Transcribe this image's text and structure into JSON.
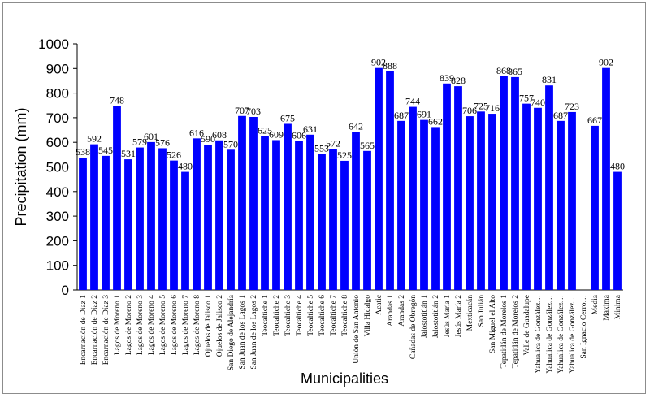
{
  "chart_data": {
    "type": "bar",
    "ylabel": "Precipitation (mm)",
    "xlabel": "Municipalities",
    "ylim": [
      0,
      1000
    ],
    "yticks": [
      0,
      100,
      200,
      300,
      400,
      500,
      600,
      700,
      800,
      900,
      1000
    ],
    "grid": false,
    "bar_color": "#0000ff",
    "categories": [
      "Encarnación de Díaz 1",
      "Encarnación de Díaz 2",
      "Encarnación de Díaz 3",
      "Lagos de Moreno 1",
      "Lagos de Moreno 2",
      "Lagos de Moreno 3",
      "Lagos de Moreno 4",
      "Lagos de Moreno 5",
      "Lagos de Moreno 6",
      "Lagos de Moreno 7",
      "Lagos de Moreno 8",
      "Ojuelos de Jalisco 1",
      "Ojuelos de Jalisco 2",
      "San Diego de Alejandría",
      "San Juan de los Lagos 1",
      "San Juan de los Lagos 2",
      "Teocaltiche 1",
      "Teocaltiche 2",
      "Teocaltiche 3",
      "Teocaltiche 4",
      "Teocaltiche 5",
      "Teocaltiche 6",
      "Teocaltiche 7",
      "Teocaltiche 8",
      "Unión de San Antonio",
      "Villa Hidalgo",
      "Acatic",
      "Arandas 1",
      "Arandas 2",
      "Cañadas de Obregón",
      "Jalostotitlán 1",
      "Jalostotitlán 2",
      "Jesús María 1",
      "Jesús María 2",
      "Mexticacán",
      "San Julián",
      "San Miguel el Alto",
      "Tepatitlán de Morelos 1",
      "Tepatitlán de Morelos 2",
      "Valle de Guadalupe",
      "Yahualica de González…",
      "Yahualica de González…",
      "Yahualica de González…",
      "Yahualica de González…",
      "San Ignacio Cerro…",
      "Media",
      "Maxima",
      "Minima"
    ],
    "values": [
      538,
      592,
      545,
      748,
      531,
      579,
      601,
      576,
      526,
      480,
      616,
      590,
      608,
      570,
      707,
      703,
      625,
      609,
      675,
      606,
      631,
      553,
      572,
      525,
      642,
      565,
      902,
      888,
      687,
      744,
      691,
      662,
      839,
      828,
      706,
      725,
      716,
      868,
      865,
      757,
      740,
      831,
      687,
      723,
      null,
      667,
      902,
      480
    ],
    "data_labels": [
      "538",
      "592",
      "545",
      "748",
      "531",
      "579",
      "601",
      "576",
      "526",
      "480",
      "616",
      "590",
      "608",
      "570",
      "707",
      "703",
      "625",
      "609",
      "675",
      "606",
      "631",
      "553",
      "572",
      "525",
      "642",
      "565",
      "902",
      "888",
      "687",
      "744",
      "691",
      "662",
      "839",
      "828",
      "706",
      "725",
      "716",
      "868",
      "865",
      "757",
      "740",
      "831",
      "687",
      "723",
      "",
      "667",
      "902",
      "480"
    ]
  }
}
